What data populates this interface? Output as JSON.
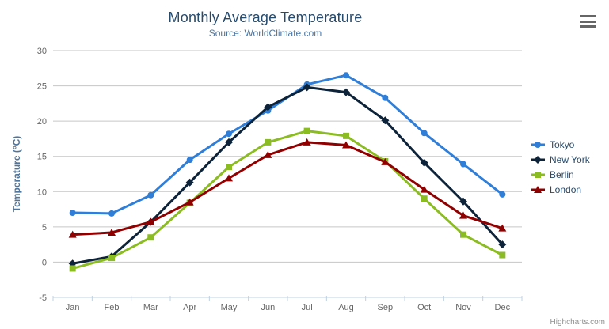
{
  "header": {
    "title": "Monthly Average Temperature",
    "subtitle": "Source: WorldClimate.com"
  },
  "menu": {
    "icon": "hamburger-icon"
  },
  "credits": {
    "label": "Highcharts.com"
  },
  "colors": {
    "title": "#274b6d",
    "subtitle": "#4d759e",
    "axis_title": "#4d759e",
    "axis_labels": "#666666",
    "gridline": "#c6c6c6",
    "axis_line": "#c0d0e0",
    "legend_text": "#274b6d",
    "credits_text": "#909090"
  },
  "chart_data": {
    "type": "line",
    "title": "Monthly Average Temperature",
    "subtitle": "Source: WorldClimate.com",
    "categories": [
      "Jan",
      "Feb",
      "Mar",
      "Apr",
      "May",
      "Jun",
      "Jul",
      "Aug",
      "Sep",
      "Oct",
      "Nov",
      "Dec"
    ],
    "xlabel": "",
    "ylabel": "Temperature (°C)",
    "ylim": [
      -5,
      30
    ],
    "ytick_interval": 5,
    "yticks": [
      -5,
      0,
      5,
      10,
      15,
      20,
      25,
      30
    ],
    "grid": true,
    "legend_position": "right",
    "series": [
      {
        "name": "Tokyo",
        "color": "#2f7ed8",
        "marker": "circle",
        "values": [
          7.0,
          6.9,
          9.5,
          14.5,
          18.2,
          21.5,
          25.2,
          26.5,
          23.3,
          18.3,
          13.9,
          9.6
        ]
      },
      {
        "name": "New York",
        "color": "#0d233a",
        "marker": "diamond",
        "values": [
          -0.2,
          0.8,
          5.7,
          11.3,
          17.0,
          22.0,
          24.8,
          24.1,
          20.1,
          14.1,
          8.6,
          2.5
        ]
      },
      {
        "name": "Berlin",
        "color": "#8bbc21",
        "marker": "square",
        "values": [
          -0.9,
          0.6,
          3.5,
          8.4,
          13.5,
          17.0,
          18.6,
          17.9,
          14.3,
          9.0,
          3.9,
          1.0
        ]
      },
      {
        "name": "London",
        "color": "#910000",
        "marker": "triangle",
        "values": [
          3.9,
          4.2,
          5.7,
          8.5,
          11.9,
          15.2,
          17.0,
          16.6,
          14.2,
          10.3,
          6.6,
          4.8
        ]
      }
    ]
  }
}
